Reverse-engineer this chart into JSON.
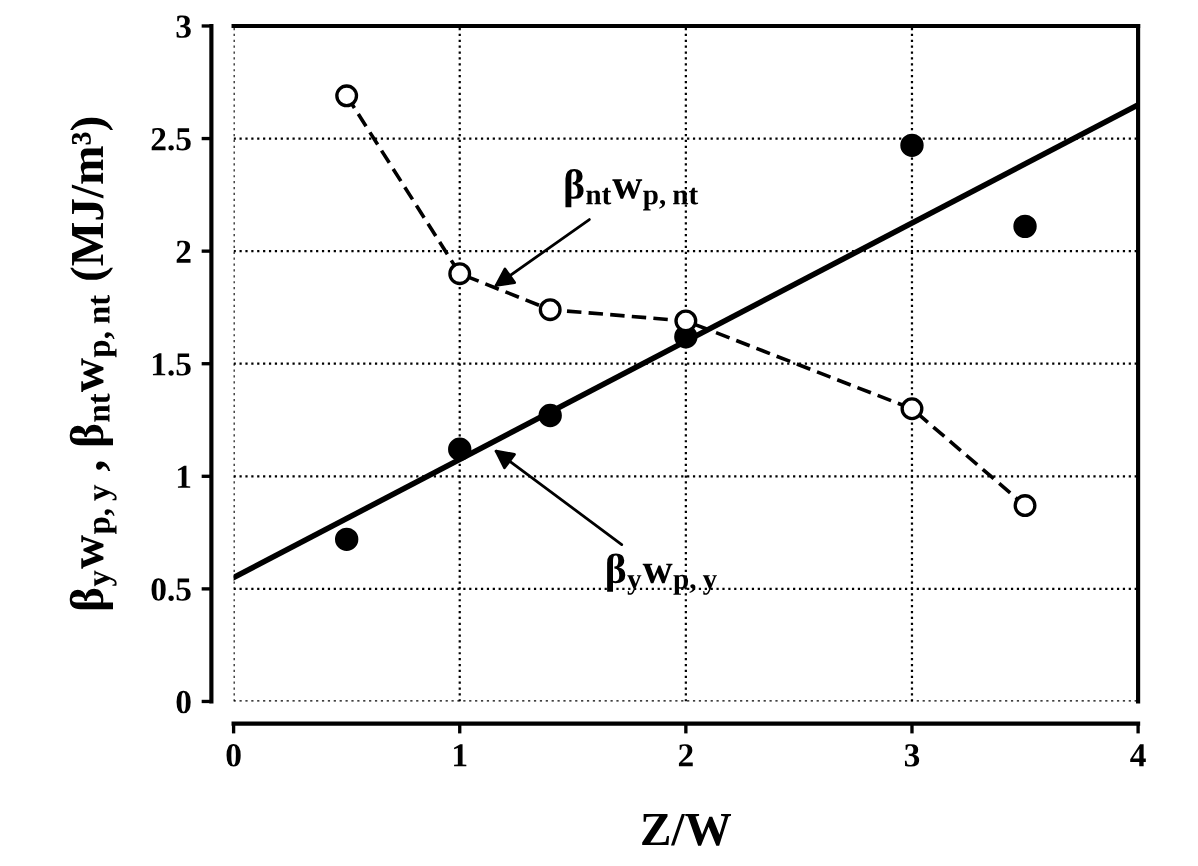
{
  "chart_data": {
    "type": "scatter",
    "xlabel": "Z/W",
    "ylabel": "β$_{y}$w$_{p,y}$ , β$_{nt}$w$_{p,nt}$ (MJ/m³)",
    "xlim": [
      0,
      4
    ],
    "xticks": [
      0,
      1,
      2,
      3,
      4
    ],
    "ylim": [
      0,
      3
    ],
    "yticks": [
      0,
      0.5,
      1,
      1.5,
      2,
      2.5,
      3
    ],
    "grid": true,
    "legend": false,
    "series": [
      {
        "color": "#000000",
        "marker": "circle",
        "x": [
          0.5,
          1,
          1.4,
          2,
          3,
          3.5
        ],
        "values": [
          0.72,
          1.12,
          1.27,
          1.62,
          2.47,
          2.11
        ]
      },
      {
        "type": "line",
        "color": "#000000",
        "marker": "none",
        "line_style": "solid",
        "x": [
          0,
          4
        ],
        "values": [
          0.55,
          2.65
        ]
      },
      {
        "type": "line",
        "color": "#000000",
        "marker": "circle",
        "line_style": "dashed",
        "x": [
          0.5,
          1,
          1.4,
          2,
          3,
          3.5
        ],
        "values": [
          2.69,
          1.9,
          1.74,
          1.69,
          1.3,
          0.87
        ]
      }
    ],
    "annotations": [
      {
        "text": "β$_{nt}$w$_{p,nt}$",
        "x": 1.15,
        "y": 1.84
      },
      {
        "text": "β$_{y}$w$_{p,y}$",
        "x": 1.15,
        "y": 1.12
      }
    ]
  }
}
